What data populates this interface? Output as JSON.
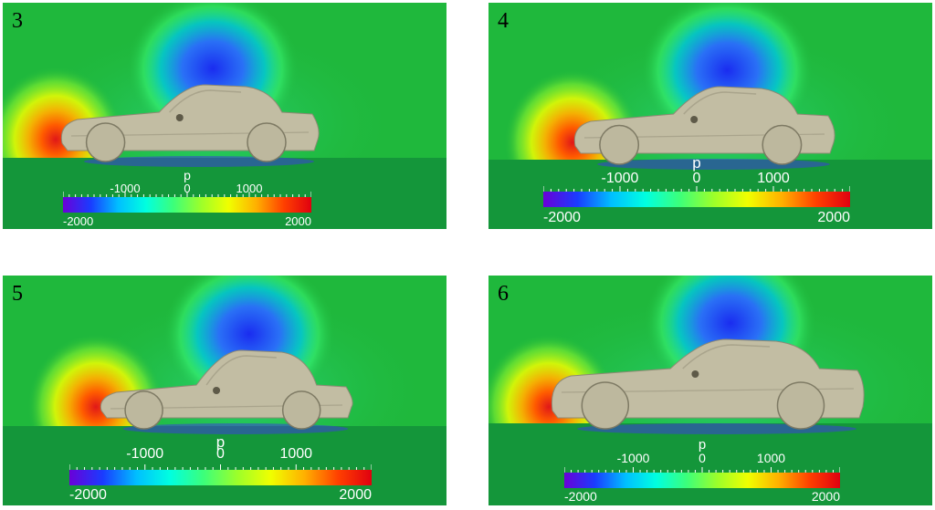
{
  "panels": [
    {
      "number": "3"
    },
    {
      "number": "4"
    },
    {
      "number": "5"
    },
    {
      "number": "6"
    }
  ],
  "colorbar": {
    "variable": "p",
    "range": [
      -2000,
      2000
    ],
    "labels_top": [
      "-1000",
      "0",
      "1000"
    ],
    "labels_bottom": [
      "-2000",
      "2000"
    ],
    "colors": [
      "#6a00d8",
      "#1a3cff",
      "#00bfff",
      "#00ffe0",
      "#3cff7a",
      "#9cff2a",
      "#f0ff00",
      "#ffb000",
      "#ff4000",
      "#e00010"
    ]
  },
  "colors": {
    "background_field": "#1fb83c",
    "ground": "#14963a",
    "car_body": "#c2bda3",
    "low_pressure": "#1a2cf0",
    "high_pressure": "#e01818"
  }
}
